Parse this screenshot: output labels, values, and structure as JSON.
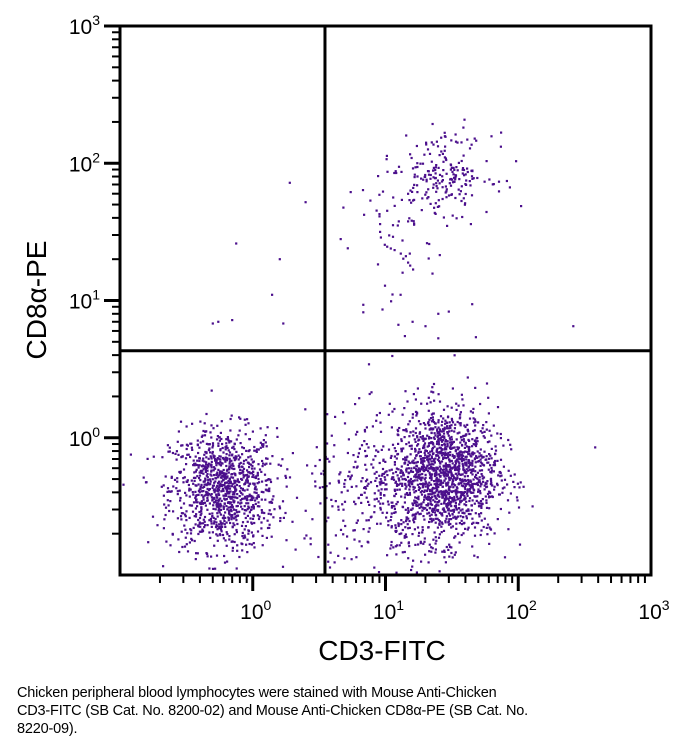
{
  "chart_data": {
    "type": "scatter",
    "title": "",
    "xlabel": "CD3-FITC",
    "ylabel": "CD8α-PE",
    "xscale": "log",
    "yscale": "log",
    "xlim": [
      0.1,
      1000
    ],
    "ylim": [
      0.1,
      1000
    ],
    "x_major_ticks": [
      {
        "base": "10",
        "exp": "0",
        "value": 1
      },
      {
        "base": "10",
        "exp": "1",
        "value": 10
      },
      {
        "base": "10",
        "exp": "2",
        "value": 100
      },
      {
        "base": "10",
        "exp": "3",
        "value": 1000
      }
    ],
    "y_major_ticks": [
      {
        "base": "10",
        "exp": "0",
        "value": 1
      },
      {
        "base": "10",
        "exp": "1",
        "value": 10
      },
      {
        "base": "10",
        "exp": "2",
        "value": 100
      },
      {
        "base": "10",
        "exp": "3",
        "value": 1000
      }
    ],
    "grid": false,
    "legend": "none",
    "point_color": "#4b0f8c",
    "quadrant_gates": {
      "x": 3.5,
      "y": 4.3
    },
    "clusters": [
      {
        "name": "CD3- CD8- (lower-left)",
        "count": 1100,
        "center_x": 0.6,
        "center_y": 0.42,
        "log_sd_x": 0.2,
        "log_sd_y": 0.22
      },
      {
        "name": "CD3+ CD8- (lower-right)",
        "count": 1500,
        "center_x": 28,
        "center_y": 0.55,
        "log_sd_x": 0.2,
        "log_sd_y": 0.24
      },
      {
        "name": "CD3+ CD8- tail (lower-right)",
        "count": 380,
        "center_x": 10,
        "center_y": 0.35,
        "log_sd_x": 0.3,
        "log_sd_y": 0.3
      },
      {
        "name": "CD3+ CD8+ (upper-right)",
        "count": 190,
        "center_x": 28,
        "center_y": 85,
        "log_sd_x": 0.18,
        "log_sd_y": 0.14
      },
      {
        "name": "CD3+ CD8+ tail (upper-right)",
        "count": 70,
        "center_x": 14,
        "center_y": 35,
        "log_sd_x": 0.2,
        "log_sd_y": 0.3
      }
    ],
    "outliers": [
      {
        "x": 1.9,
        "y": 72
      },
      {
        "x": 2.5,
        "y": 52
      },
      {
        "x": 0.75,
        "y": 26
      },
      {
        "x": 1.6,
        "y": 20
      },
      {
        "x": 1.4,
        "y": 11
      },
      {
        "x": 0.5,
        "y": 6.8
      },
      {
        "x": 0.55,
        "y": 7.0
      },
      {
        "x": 0.7,
        "y": 7.2
      },
      {
        "x": 1.7,
        "y": 6.8
      },
      {
        "x": 260,
        "y": 6.5
      },
      {
        "x": 380,
        "y": 0.85
      },
      {
        "x": 6.8,
        "y": 9.3
      },
      {
        "x": 6.8,
        "y": 8.2
      },
      {
        "x": 9.5,
        "y": 8.6
      },
      {
        "x": 13,
        "y": 11
      },
      {
        "x": 16,
        "y": 7.0
      },
      {
        "x": 20,
        "y": 6.5
      },
      {
        "x": 25,
        "y": 8.0
      },
      {
        "x": 30,
        "y": 8.3
      },
      {
        "x": 45,
        "y": 9.4
      },
      {
        "x": 48,
        "y": 5.4
      },
      {
        "x": 14,
        "y": 5.5
      },
      {
        "x": 25,
        "y": 5.3
      },
      {
        "x": 5.2,
        "y": 24
      },
      {
        "x": 4.6,
        "y": 28
      },
      {
        "x": 44,
        "y": 36
      }
    ],
    "caption": "Chicken peripheral blood lymphocytes were stained with Mouse Anti-Chicken CD3-FITC (SB Cat. No. 8200-02) and Mouse Anti-Chicken CD8α-PE (SB Cat. No. 8220-09)."
  },
  "caption": {
    "line1": "Chicken peripheral blood lymphocytes were stained with Mouse Anti-Chicken",
    "line2": "CD3-FITC (SB Cat. No. 8200-02) and Mouse Anti-Chicken CD8α-PE (SB Cat. No.",
    "line3": "8220-09)."
  }
}
